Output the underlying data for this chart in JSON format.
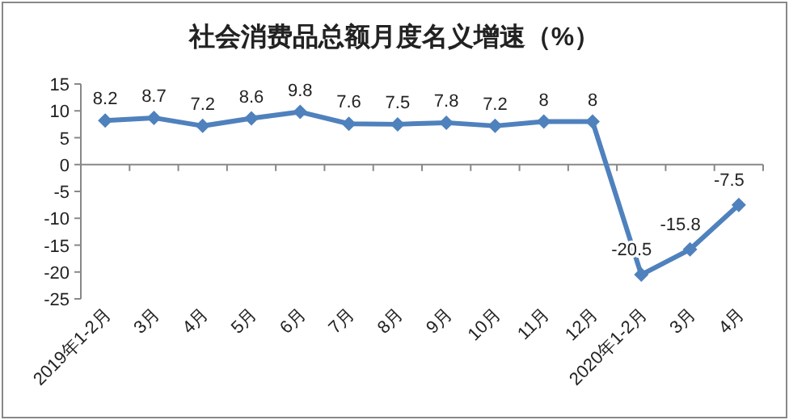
{
  "chart_data": {
    "type": "line",
    "title": "社会消费品总额月度名义增速（%）",
    "categories": [
      "2019年1-2月",
      "3月",
      "4月",
      "5月",
      "6月",
      "7月",
      "8月",
      "9月",
      "10月",
      "11月",
      "12月",
      "2020年1-2月",
      "3月",
      "4月"
    ],
    "series": [
      {
        "color": "#4f81bd",
        "values": [
          8.2,
          8.7,
          7.2,
          8.6,
          9.8,
          7.6,
          7.5,
          7.8,
          7.2,
          8,
          8,
          -20.5,
          -15.8,
          -7.5
        ]
      }
    ],
    "ylim": [
      -25,
      15
    ],
    "yticks": [
      -25,
      -20,
      -15,
      -10,
      -5,
      0,
      5,
      10,
      15
    ],
    "data_labels": true,
    "marker": "diamond"
  }
}
